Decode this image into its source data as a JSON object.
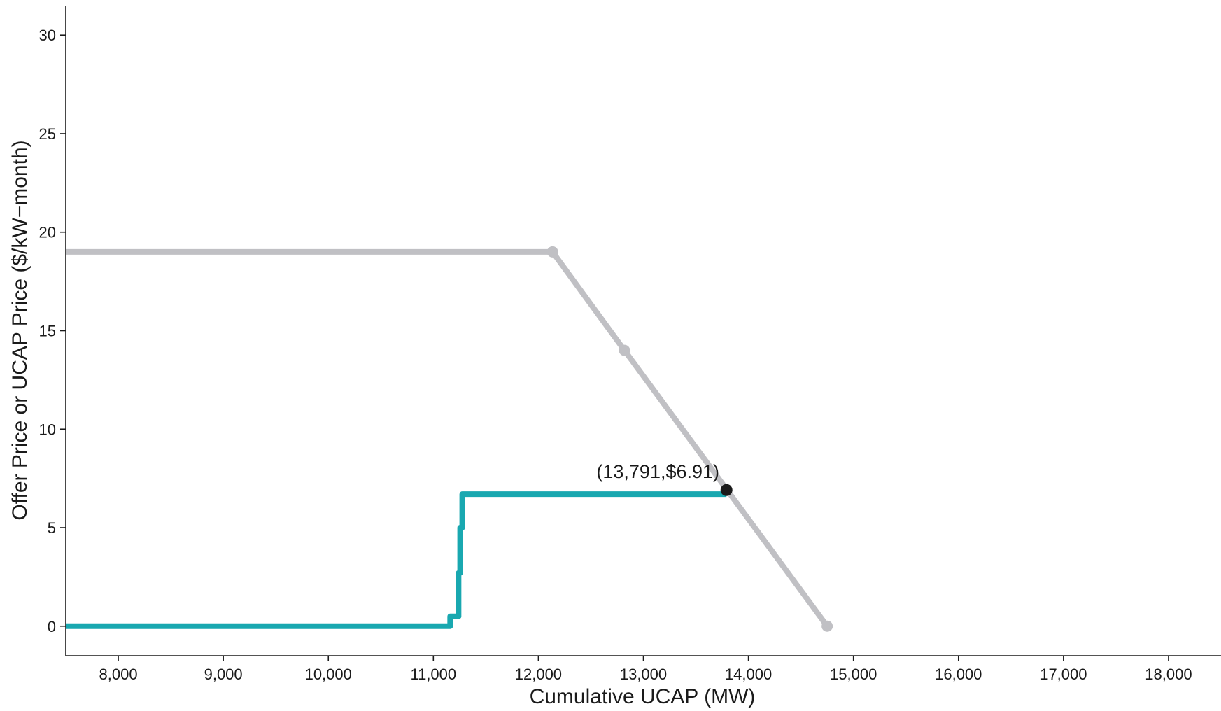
{
  "chart_data": {
    "type": "line",
    "xlabel": "Cumulative UCAP (MW)",
    "ylabel": "Offer Price or UCAP Price ($/kW−month)",
    "xlim": [
      7500,
      18500
    ],
    "ylim": [
      -1.5,
      31.5
    ],
    "x_ticks": [
      8000,
      9000,
      10000,
      11000,
      12000,
      13000,
      14000,
      15000,
      16000,
      17000,
      18000
    ],
    "x_tick_labels": [
      "8,000",
      "9,000",
      "10,000",
      "11,000",
      "12,000",
      "13,000",
      "14,000",
      "15,000",
      "16,000",
      "17,000",
      "18,000"
    ],
    "y_ticks": [
      0,
      5,
      10,
      15,
      20,
      25,
      30
    ],
    "y_tick_labels": [
      "0",
      "5",
      "10",
      "15",
      "20",
      "25",
      "30"
    ],
    "grid": false,
    "series": [
      {
        "kind": "demand",
        "color": "#c0c0c4",
        "points": [
          [
            7500,
            19.0
          ],
          [
            12135,
            19.0
          ],
          [
            12820,
            14.0
          ],
          [
            14750,
            0.0
          ]
        ],
        "markers": [
          [
            12135,
            19.0
          ],
          [
            12820,
            14.0
          ],
          [
            14750,
            0.0
          ]
        ]
      },
      {
        "kind": "supply",
        "color": "#19a8b0",
        "step_points": [
          [
            7500,
            0.0
          ],
          [
            11160,
            0.0
          ],
          [
            11160,
            0.5
          ],
          [
            11240,
            0.5
          ],
          [
            11240,
            2.7
          ],
          [
            11255,
            2.7
          ],
          [
            11255,
            5.0
          ],
          [
            11275,
            5.0
          ],
          [
            11275,
            6.7
          ],
          [
            13791,
            6.7
          ]
        ]
      }
    ],
    "clearing_point": {
      "x": 13791,
      "y": 6.91,
      "label": "(13,791,$6.91)",
      "color": "#1a1a1a"
    }
  }
}
